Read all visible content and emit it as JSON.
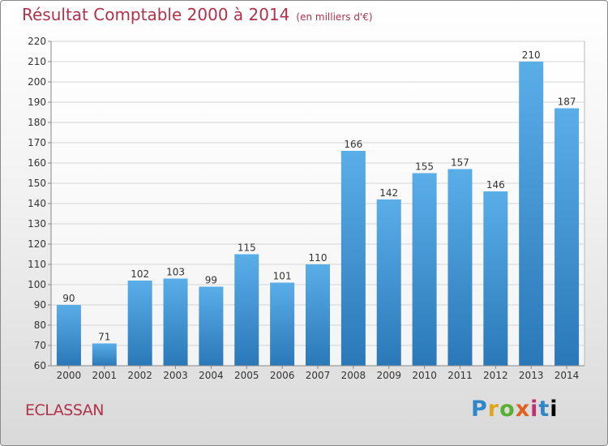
{
  "title": "Résultat Comptable 2000 à 2014",
  "subtitle": "(en milliers d'€)",
  "commune": "ECLASSAN",
  "logo": {
    "text": "Proxiti",
    "letters": [
      "P",
      "r",
      "o",
      "x",
      "i",
      "t",
      "i"
    ]
  },
  "colors": {
    "bar_top": "#5aaee8",
    "bar_bottom": "#2a78b8",
    "title": "#b0324a",
    "grid": "#d4d4d4"
  },
  "chart_data": {
    "type": "bar",
    "categories": [
      "2000",
      "2001",
      "2002",
      "2003",
      "2004",
      "2005",
      "2006",
      "2007",
      "2008",
      "2009",
      "2010",
      "2011",
      "2012",
      "2013",
      "2014"
    ],
    "values": [
      90,
      71,
      102,
      103,
      99,
      115,
      101,
      110,
      166,
      142,
      155,
      157,
      146,
      210,
      187
    ],
    "ylim": [
      60,
      220
    ],
    "yticks": [
      60,
      70,
      80,
      90,
      100,
      110,
      120,
      130,
      140,
      150,
      160,
      170,
      180,
      190,
      200,
      210,
      220
    ],
    "grid": true,
    "data_labels": true,
    "legend": "none"
  }
}
